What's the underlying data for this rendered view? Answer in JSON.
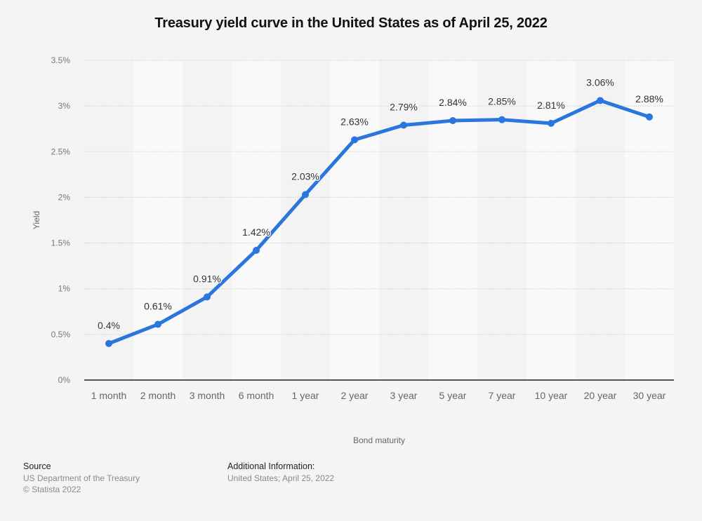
{
  "chart_data": {
    "type": "line",
    "title": "Treasury yield curve in the United States as of April 25, 2022",
    "xlabel": "Bond maturity",
    "ylabel": "Yield",
    "categories": [
      "1 month",
      "2 month",
      "3 month",
      "6 month",
      "1 year",
      "2 year",
      "3 year",
      "5 year",
      "7 year",
      "10 year",
      "20 year",
      "30 year"
    ],
    "series": [
      {
        "name": "Yield",
        "values": [
          0.4,
          0.61,
          0.91,
          1.42,
          2.03,
          2.63,
          2.79,
          2.84,
          2.85,
          2.81,
          3.06,
          2.88
        ],
        "color": "#2a76dd"
      }
    ],
    "data_labels": [
      "0.4%",
      "0.61%",
      "0.91%",
      "1.42%",
      "2.03%",
      "2.63%",
      "2.79%",
      "2.84%",
      "2.85%",
      "2.81%",
      "3.06%",
      "2.88%"
    ],
    "yticks": [
      0,
      0.5,
      1,
      1.5,
      2,
      2.5,
      3,
      3.5
    ],
    "ytick_labels": [
      "0%",
      "0.5%",
      "1%",
      "1.5%",
      "2%",
      "2.5%",
      "3%",
      "3.5%"
    ],
    "ylim": [
      0,
      3.5
    ],
    "grid": true,
    "legend": "none"
  },
  "footer": {
    "source_heading": "Source",
    "source_lines": [
      "US Department of the Treasury",
      "© Statista 2022"
    ],
    "info_heading": "Additional Information:",
    "info_lines": [
      "United States; April 25, 2022"
    ]
  }
}
